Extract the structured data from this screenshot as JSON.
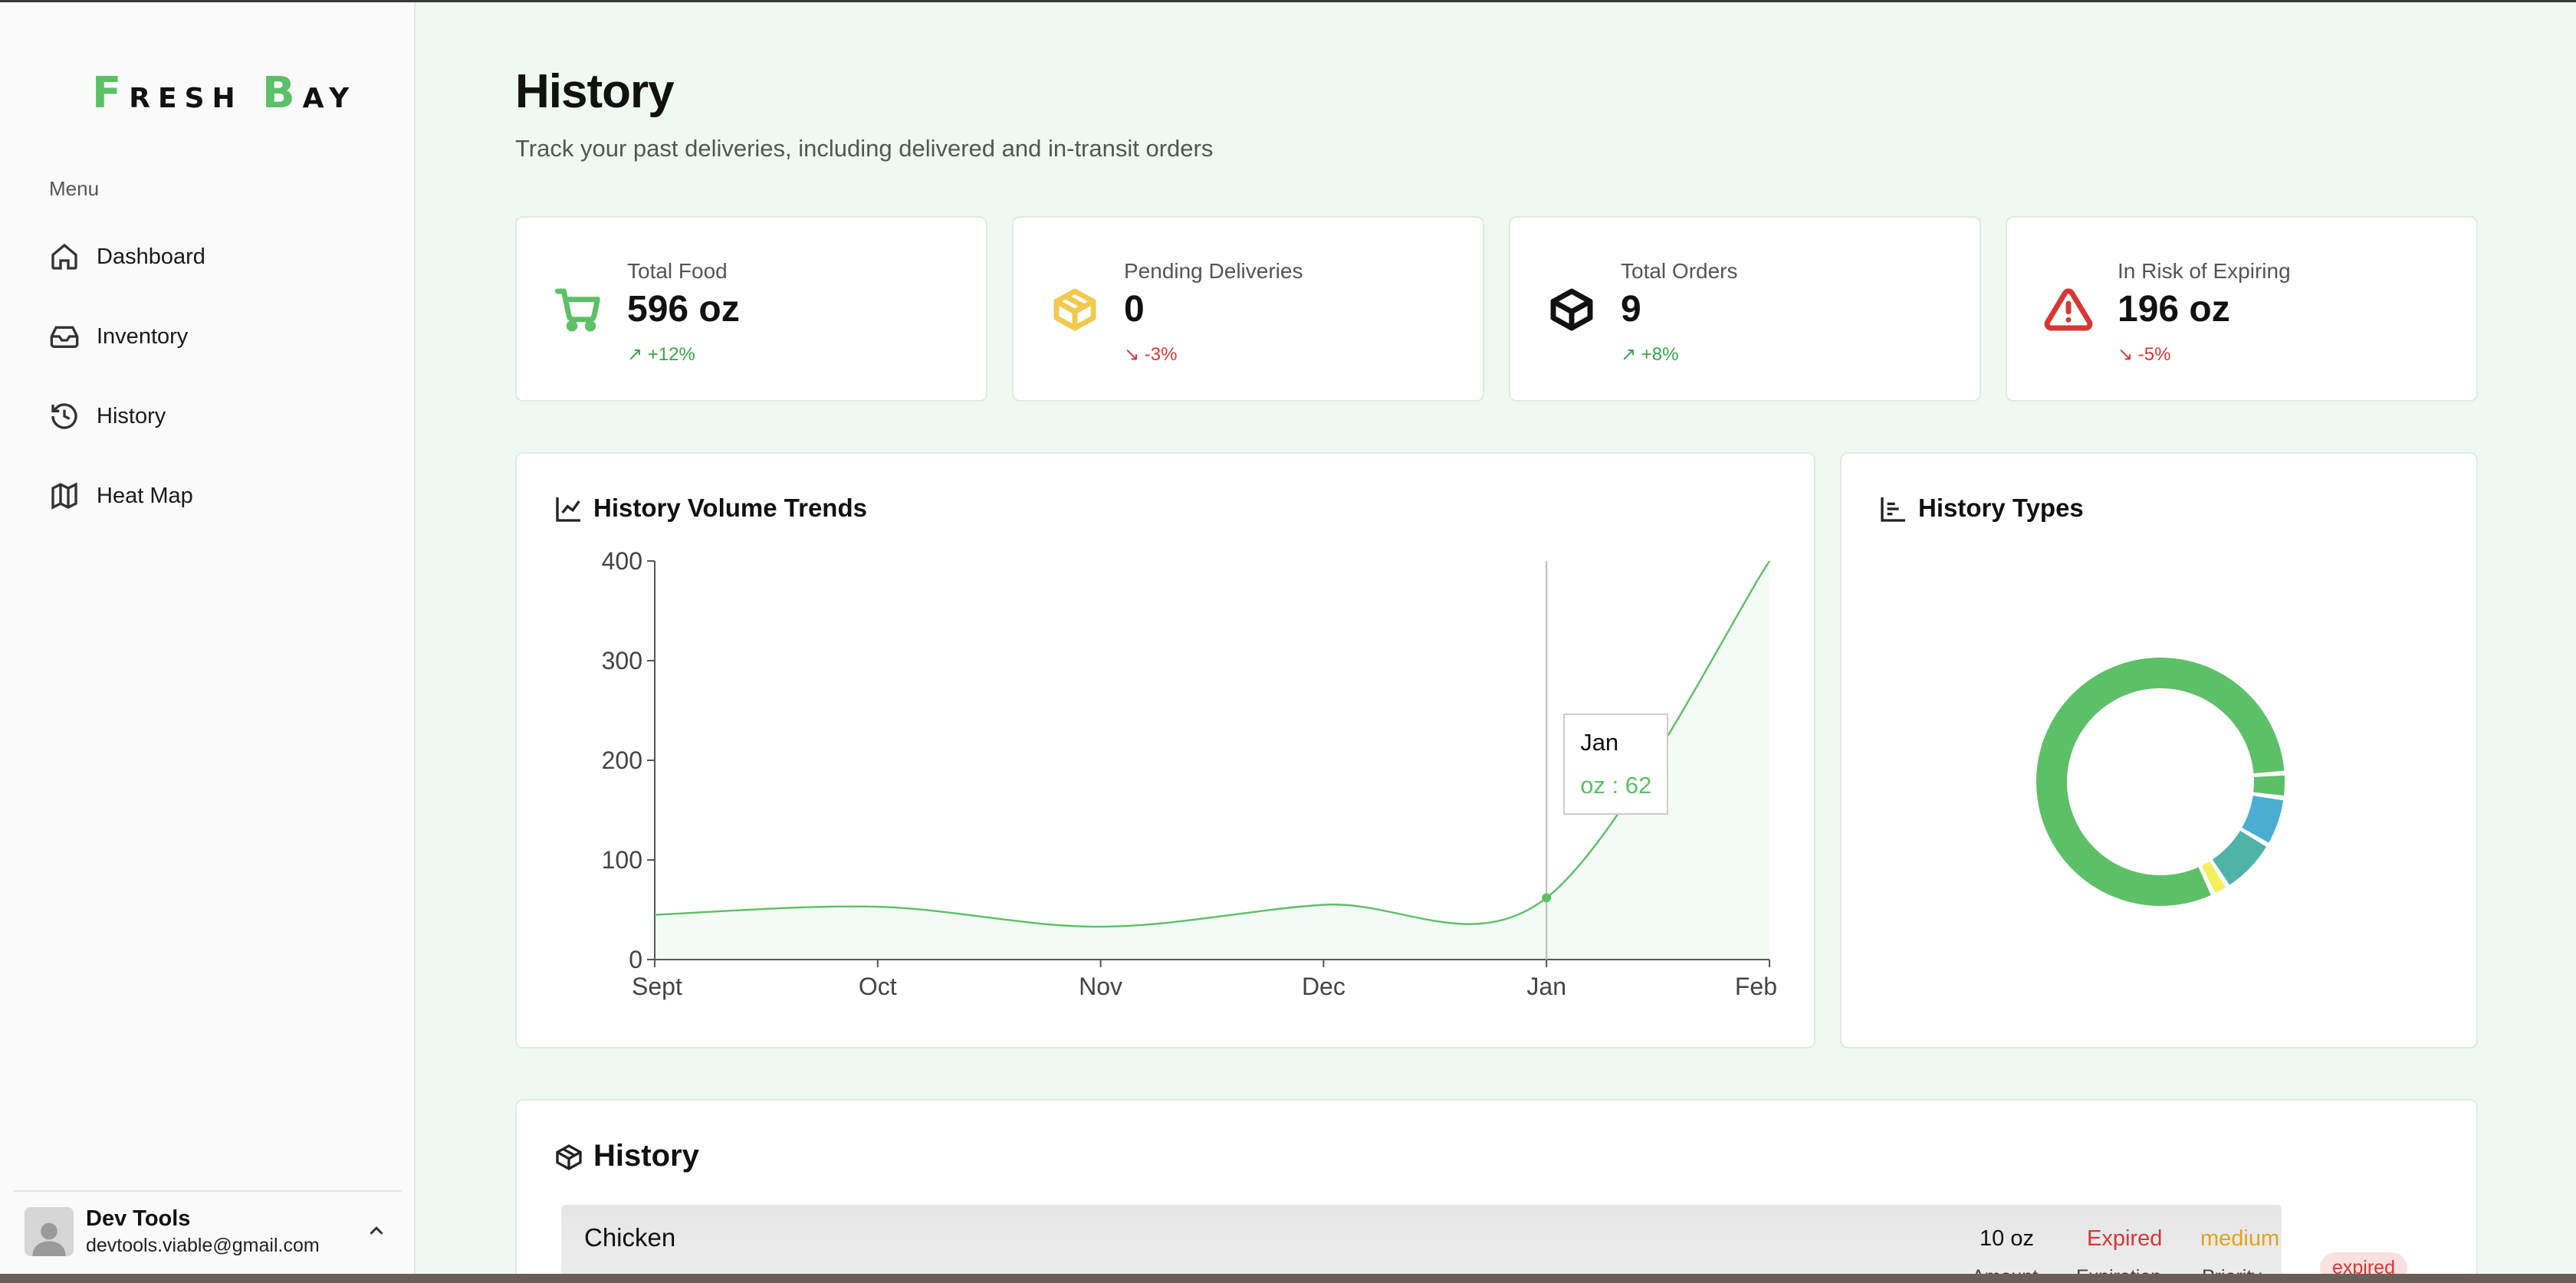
{
  "app": {
    "logo_text": "Fresh Bay"
  },
  "sidebar": {
    "menu_label": "Menu",
    "items": [
      {
        "label": "Dashboard",
        "icon": "home-icon"
      },
      {
        "label": "Inventory",
        "icon": "inbox-icon"
      },
      {
        "label": "History",
        "icon": "history-icon"
      },
      {
        "label": "Heat Map",
        "icon": "map-icon"
      }
    ],
    "user": {
      "name": "Dev Tools",
      "email": "devtools.viable@gmail.com"
    }
  },
  "header": {
    "title": "History",
    "subtitle": "Track your past deliveries, including delivered and in-transit orders"
  },
  "stats": [
    {
      "label": "Total Food",
      "value": "596 oz",
      "change": "+12%",
      "trend": "up",
      "icon": "cart-icon",
      "color": "#5cc066"
    },
    {
      "label": "Pending Deliveries",
      "value": "0",
      "change": "-3%",
      "trend": "down",
      "icon": "package-icon",
      "color": "#f2c94c"
    },
    {
      "label": "Total Orders",
      "value": "9",
      "change": "+8%",
      "trend": "up",
      "icon": "box-icon",
      "color": "#111111"
    },
    {
      "label": "In Risk of Expiring",
      "value": "196 oz",
      "change": "-5%",
      "trend": "down",
      "icon": "alert-triangle-icon",
      "color": "#d93636"
    }
  ],
  "volume_card": {
    "title": "History Volume Trends",
    "tooltip": {
      "label": "Jan",
      "value_text": "oz : 62"
    }
  },
  "types_card": {
    "title": "History Types"
  },
  "history_section": {
    "title": "History",
    "rows": [
      {
        "name": "Chicken",
        "quantity": "10 oz",
        "status": "Expired",
        "priority": "medium",
        "badge": "expired",
        "sub_labels": [
          "Amount",
          "Expiration",
          "Priority"
        ]
      }
    ]
  },
  "chart_data": [
    {
      "type": "area",
      "categories": [
        "Sept",
        "Oct",
        "Nov",
        "Dec",
        "Jan",
        "Feb"
      ],
      "series": [
        {
          "values": [
            45,
            53,
            33,
            55,
            62,
            400
          ],
          "color": "#5cc066"
        }
      ],
      "ylim": [
        0,
        400
      ],
      "yticks": [
        0,
        100,
        200,
        300,
        400
      ],
      "grid": false,
      "active_point": {
        "category": "Jan",
        "value": 62
      }
    },
    {
      "type": "pie",
      "style": "donut",
      "slices": [
        {
          "value": 76,
          "color": "#5cc066"
        },
        {
          "value": 3,
          "color": "#5cc066"
        },
        {
          "value": 6,
          "color": "#4aaed2"
        },
        {
          "value": 7,
          "color": "#4fb3a6"
        },
        {
          "value": 2,
          "color": "#f4f05a"
        }
      ]
    }
  ]
}
